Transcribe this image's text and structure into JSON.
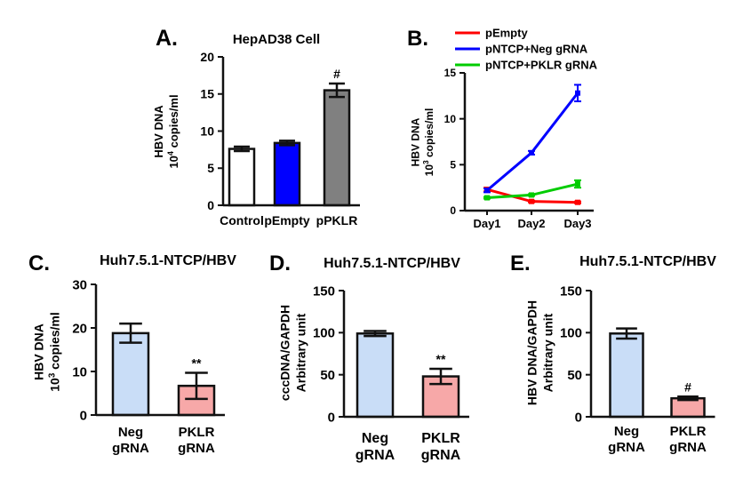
{
  "figure": {
    "background": "#ffffff"
  },
  "chart_data": [
    {
      "id": "A",
      "panel_letter": "A.",
      "type": "bar",
      "title": "HepAD38 Cell",
      "ylabel_line1": "HBV DNA",
      "ylabel_line2_base": "10",
      "ylabel_line2_exp": "4",
      "ylabel_line2_rest": " copies/ml",
      "ylim": [
        0,
        20
      ],
      "yticks": [
        0,
        5,
        10,
        15,
        20
      ],
      "categories": [
        "Control",
        "pEmpty",
        "pPKLR"
      ],
      "values": [
        7.6,
        8.4,
        15.5
      ],
      "errors": [
        0.3,
        0.3,
        0.9
      ],
      "colors": [
        "#ffffff",
        "#0000ff",
        "#808080"
      ],
      "annotations": [
        "",
        "",
        "#"
      ]
    },
    {
      "id": "B",
      "panel_letter": "B.",
      "type": "line",
      "ylabel_line1": "HBV DNA",
      "ylabel_line2_base": "10",
      "ylabel_line2_exp": "3",
      "ylabel_line2_rest": " copies/ml",
      "ylim": [
        0,
        15
      ],
      "yticks": [
        0,
        5,
        10,
        15
      ],
      "x": [
        "Day1",
        "Day2",
        "Day3"
      ],
      "legend_position": "top",
      "series": [
        {
          "name": "pEmpty",
          "color": "#ff0000",
          "values": [
            2.3,
            1.0,
            0.9
          ],
          "errors": [
            0.2,
            0.1,
            0.1
          ]
        },
        {
          "name": "pNTCP+Neg gRNA",
          "color": "#0000ff",
          "values": [
            2.2,
            6.3,
            12.8
          ],
          "errors": [
            0.2,
            0.2,
            0.9
          ]
        },
        {
          "name": "pNTCP+PKLR gRNA",
          "color": "#00cc00",
          "values": [
            1.4,
            1.7,
            2.9
          ],
          "errors": [
            0.1,
            0.1,
            0.4
          ]
        }
      ]
    },
    {
      "id": "C",
      "panel_letter": "C.",
      "type": "bar",
      "title": "Huh7.5.1-NTCP/HBV",
      "ylabel_line1": "HBV DNA",
      "ylabel_line2_base": "10",
      "ylabel_line2_exp": "3",
      "ylabel_line2_rest": " copies/ml",
      "ylim": [
        0,
        30
      ],
      "yticks": [
        0,
        10,
        20,
        30
      ],
      "categories": [
        [
          "Neg",
          "gRNA"
        ],
        [
          "PKLR",
          "gRNA"
        ]
      ],
      "values": [
        18.8,
        6.7
      ],
      "errors": [
        2.2,
        3.0
      ],
      "colors": [
        "#c9ddf7",
        "#f7a8a8"
      ],
      "annotations": [
        "",
        "**"
      ]
    },
    {
      "id": "D",
      "panel_letter": "D.",
      "type": "bar",
      "title": "Huh7.5.1-NTCP/HBV",
      "ylabel_line1": "cccDNA/GAPDH",
      "ylabel_line2": "Arbitrary unit",
      "ylim": [
        0,
        150
      ],
      "yticks": [
        0,
        50,
        100,
        150
      ],
      "categories": [
        [
          "Neg",
          "gRNA"
        ],
        [
          "PKLR",
          "gRNA"
        ]
      ],
      "values": [
        99,
        48
      ],
      "errors": [
        3,
        9
      ],
      "colors": [
        "#c9ddf7",
        "#f7a8a8"
      ],
      "annotations": [
        "",
        "**"
      ]
    },
    {
      "id": "E",
      "panel_letter": "E.",
      "type": "bar",
      "title": "Huh7.5.1-NTCP/HBV",
      "ylabel_line1": "HBV DNA/GAPDH",
      "ylabel_line2": "Arbitrary unit",
      "ylim": [
        0,
        150
      ],
      "yticks": [
        0,
        50,
        100,
        150
      ],
      "categories": [
        [
          "Neg",
          "gRNA"
        ],
        [
          "PKLR",
          "gRNA"
        ]
      ],
      "values": [
        99,
        22
      ],
      "errors": [
        6,
        2
      ],
      "colors": [
        "#c9ddf7",
        "#f7a8a8"
      ],
      "annotations": [
        "",
        "#"
      ]
    }
  ]
}
